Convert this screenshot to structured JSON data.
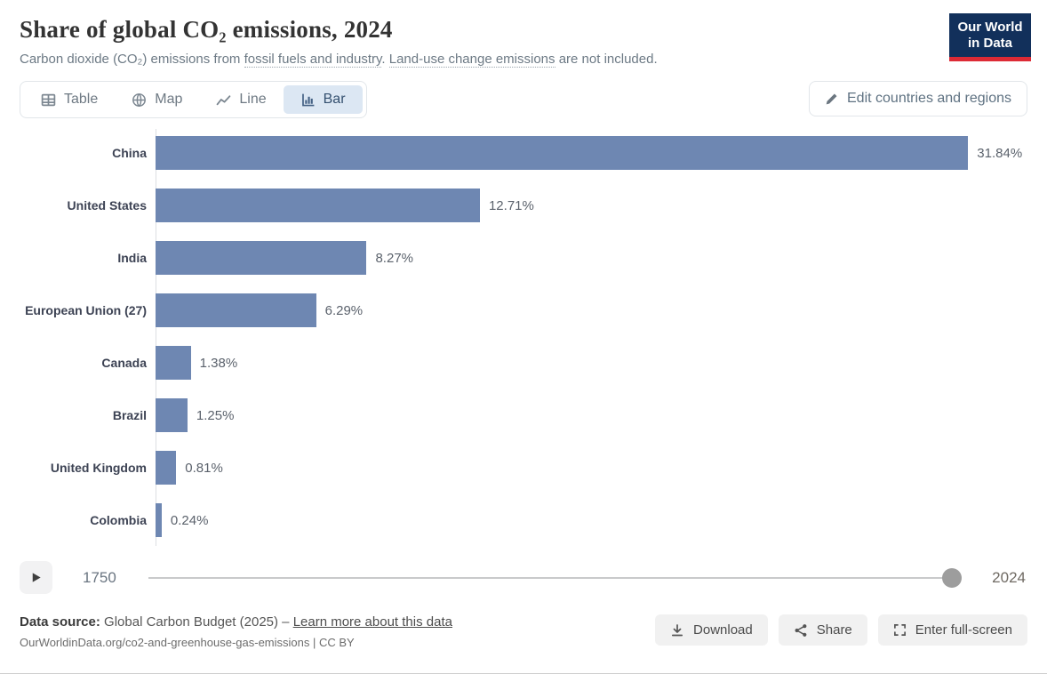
{
  "header": {
    "title": "Share of global CO₂ emissions, 2024",
    "subtitle": {
      "text1": "Carbon dioxide (CO₂) emissions from ",
      "link1": "fossil fuels and industry",
      "text2": ". ",
      "link2": "Land-use change emissions",
      "text3": " are not included."
    },
    "logo": {
      "line1": "Our World",
      "line2": "in Data"
    }
  },
  "controls": {
    "tabs": [
      {
        "label": "Table",
        "icon": "table-icon",
        "active": false
      },
      {
        "label": "Map",
        "icon": "globe-icon",
        "active": false
      },
      {
        "label": "Line",
        "icon": "line-chart-icon",
        "active": false
      },
      {
        "label": "Bar",
        "icon": "bar-chart-icon",
        "active": true
      }
    ],
    "edit_button_label": "Edit countries and regions"
  },
  "chart_data": {
    "type": "bar",
    "orientation": "horizontal",
    "title": "Share of global CO₂ emissions, 2024",
    "categories": [
      "China",
      "United States",
      "India",
      "European Union (27)",
      "Canada",
      "Brazil",
      "United Kingdom",
      "Colombia"
    ],
    "values": [
      31.84,
      12.71,
      8.27,
      6.29,
      1.38,
      1.25,
      0.81,
      0.24
    ],
    "value_labels": [
      "31.84%",
      "12.71%",
      "8.27%",
      "6.29%",
      "1.38%",
      "1.25%",
      "0.81%",
      "0.24%"
    ],
    "unit": "%",
    "xlim": [
      0,
      31.84
    ],
    "bar_color": "#6e87b2",
    "grid": false,
    "legend": "none"
  },
  "timeline": {
    "start_year": "1750",
    "end_year": "2024",
    "selected_year": "2024"
  },
  "footer": {
    "source_label": "Data source:",
    "source_text": " Global Carbon Budget (2025) – ",
    "source_link": "Learn more about this data",
    "attribution": "OurWorldinData.org/co2-and-greenhouse-gas-emissions | CC BY",
    "buttons": [
      {
        "label": "Download",
        "icon": "download-icon"
      },
      {
        "label": "Share",
        "icon": "share-icon"
      },
      {
        "label": "Enter full-screen",
        "icon": "fullscreen-icon"
      }
    ]
  },
  "colors": {
    "bar": "#6e87b2",
    "active_tab_bg": "#dce7f3",
    "active_tab_text": "#34506f",
    "logo_navy": "#12305b",
    "logo_red": "#dd2a35"
  }
}
